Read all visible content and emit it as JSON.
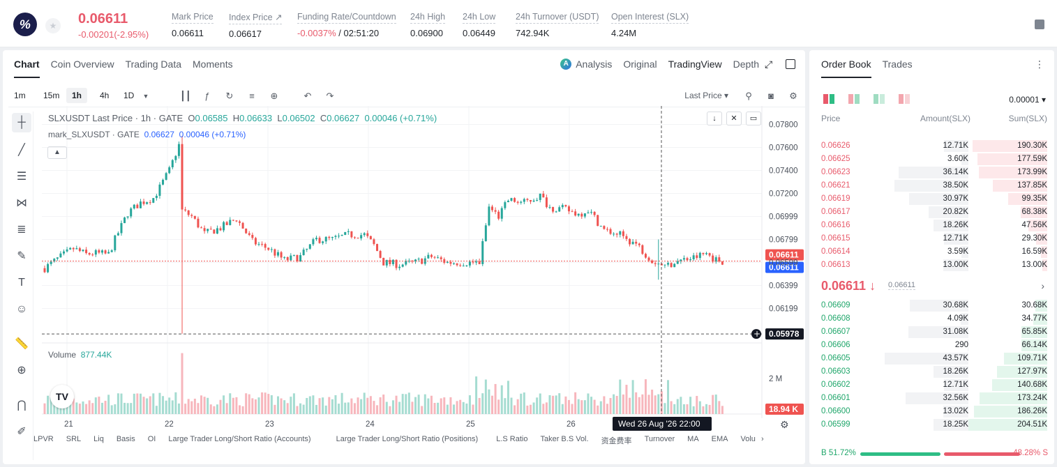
{
  "header": {
    "logo_char": "%",
    "price": "0.06611",
    "change": "-0.00201(-2.95%)",
    "stats": [
      {
        "label": "Mark Price",
        "value": "0.06611"
      },
      {
        "label": "Index Price ↗",
        "value": "0.06617"
      },
      {
        "label": "Funding Rate/Countdown",
        "value_neg": "-0.0037%",
        "value": " / 02:51:20"
      },
      {
        "label": "24h High",
        "value": "0.06900"
      },
      {
        "label": "24h Low",
        "value": "0.06449"
      },
      {
        "label": "24h Turnover (USDT)",
        "value": "742.94K"
      },
      {
        "label": "Open Interest (SLX)",
        "value": "4.24M"
      }
    ]
  },
  "chart_tabs": [
    "Chart",
    "Coin Overview",
    "Trading Data",
    "Moments"
  ],
  "view_tabs": {
    "analysis": "Analysis",
    "original": "Original",
    "tradingview": "TradingView",
    "depth": "Depth"
  },
  "timeframes": [
    "1m",
    "15m",
    "1h",
    "4h",
    "1D"
  ],
  "price_type": "Last Price",
  "legend": {
    "title": "SLXUSDT Last Price · 1h · GATE",
    "o_label": "O",
    "o": "0.06585",
    "h_label": "H",
    "h": "0.06633",
    "l_label": "L",
    "l": "0.06502",
    "c_label": "C",
    "c": "0.06627",
    "chg": "0.00046 (+0.71%)",
    "mark_label": "mark_SLXUSDT · GATE",
    "mark_val": "0.06627",
    "mark_chg": "0.00046",
    "mark_pct": "(+0.71%)"
  },
  "volume": {
    "label": "Volume",
    "value": "877.44K",
    "axis_label": "2 M",
    "last_label": "18.94 K"
  },
  "y_labels": [
    "0.07800",
    "0.07600",
    "0.07400",
    "0.07200",
    "0.06999",
    "0.06799",
    "0.06599",
    "0.06399",
    "0.06199"
  ],
  "price_tags": {
    "last": "0.06611",
    "mark": "0.06611",
    "cross": "0.05978"
  },
  "x_labels": [
    "21",
    "22",
    "23",
    "24",
    "25",
    "26"
  ],
  "crosshair_date": "Wed 26 Aug '26   22:00",
  "indicators": [
    "LPVR",
    "SRL",
    "Liq",
    "Basis",
    "OI",
    "Large Trader Long/Short Ratio (Accounts)",
    "Large Trader Long/Short Ratio (Positions)",
    "L.S Ratio",
    "Taker B.S Vol.",
    "资金费率",
    "Turnover",
    "MA",
    "EMA",
    "Volu"
  ],
  "orderbook": {
    "tabs": [
      "Order Book",
      "Trades"
    ],
    "precision": "0.00001 ▾",
    "headers": {
      "price": "Price",
      "amount": "Amount(SLX)",
      "sum": "Sum(SLX)"
    },
    "asks": [
      {
        "p": "0.06626",
        "a": "12.71K",
        "s": "190.30K"
      },
      {
        "p": "0.06625",
        "a": "3.60K",
        "s": "177.59K"
      },
      {
        "p": "0.06623",
        "a": "36.14K",
        "s": "173.99K"
      },
      {
        "p": "0.06621",
        "a": "38.50K",
        "s": "137.85K"
      },
      {
        "p": "0.06619",
        "a": "30.97K",
        "s": "99.35K"
      },
      {
        "p": "0.06617",
        "a": "20.82K",
        "s": "68.38K"
      },
      {
        "p": "0.06616",
        "a": "18.26K",
        "s": "47.56K"
      },
      {
        "p": "0.06615",
        "a": "12.71K",
        "s": "29.30K"
      },
      {
        "p": "0.06614",
        "a": "3.59K",
        "s": "16.59K"
      },
      {
        "p": "0.06613",
        "a": "13.00K",
        "s": "13.00K"
      }
    ],
    "mid": {
      "price": "0.06611 ↓",
      "mark": "0.06611"
    },
    "bids": [
      {
        "p": "0.06609",
        "a": "30.68K",
        "s": "30.68K"
      },
      {
        "p": "0.06608",
        "a": "4.09K",
        "s": "34.77K"
      },
      {
        "p": "0.06607",
        "a": "31.08K",
        "s": "65.85K"
      },
      {
        "p": "0.06606",
        "a": "290",
        "s": "66.14K"
      },
      {
        "p": "0.06605",
        "a": "43.57K",
        "s": "109.71K"
      },
      {
        "p": "0.06603",
        "a": "18.26K",
        "s": "127.97K"
      },
      {
        "p": "0.06602",
        "a": "12.71K",
        "s": "140.68K"
      },
      {
        "p": "0.06601",
        "a": "32.56K",
        "s": "173.24K"
      },
      {
        "p": "0.06600",
        "a": "13.02K",
        "s": "186.26K"
      },
      {
        "p": "0.06599",
        "a": "18.25K",
        "s": "204.51K"
      }
    ],
    "buy_ratio": "B 51.72%",
    "sell_ratio": "48.28% S",
    "buy_pct": 51.72
  },
  "colors": {
    "up": "#26a69a",
    "down": "#ef5350",
    "accent_red": "#e85a6b",
    "accent_green": "#1fa66a"
  }
}
